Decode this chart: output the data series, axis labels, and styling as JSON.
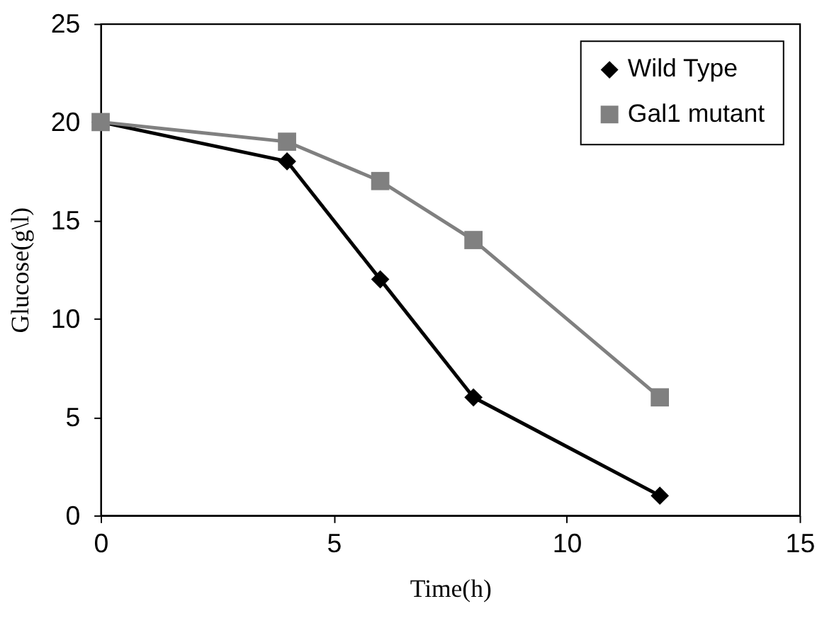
{
  "chart_data": {
    "type": "line",
    "xlabel": "Time(h)",
    "ylabel": "Glucose(g\\l)",
    "xlim": [
      0,
      15
    ],
    "xticks": [
      0,
      5,
      10,
      15
    ],
    "ylim": [
      0,
      25
    ],
    "yticks": [
      0,
      5,
      10,
      15,
      20,
      25
    ],
    "grid": false,
    "legend": "top right",
    "line_style": "solid",
    "series": [
      {
        "name": "Wild Type",
        "color": "#000000",
        "marker": "diamond",
        "x": [
          0,
          4,
          6,
          8,
          12
        ],
        "values": [
          20,
          18,
          12,
          6,
          1
        ]
      },
      {
        "name": "Gal1 mutant",
        "color": "#808080",
        "marker": "square",
        "x": [
          0,
          4,
          6,
          8,
          12
        ],
        "values": [
          20,
          19,
          17,
          14,
          6
        ]
      }
    ]
  }
}
